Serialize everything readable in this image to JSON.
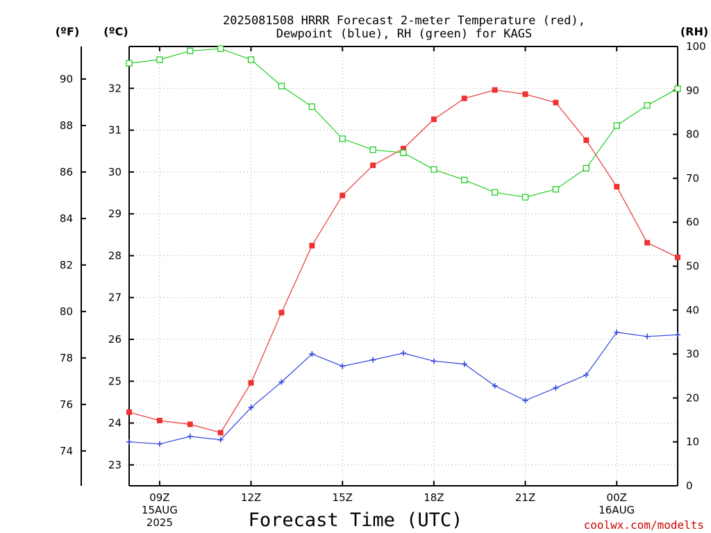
{
  "chart_data": {
    "type": "line",
    "title_line1": "2025081508 HRRR Forecast 2-meter Temperature (red),",
    "title_line2": "Dewpoint (blue), RH (green) for KAGS",
    "left_unit_f": "(ºF)",
    "left_unit_c": "(ºC)",
    "right_unit": "(RH)",
    "xlabel": "Forecast Time (UTC)",
    "credit": "coolwx.com/modelts",
    "x_hours": [
      8,
      9,
      10,
      11,
      12,
      13,
      14,
      15,
      16,
      17,
      18,
      19,
      20,
      21,
      22,
      23,
      24,
      25,
      26
    ],
    "x_ticks": [
      {
        "hour": 9,
        "lines": [
          "09Z",
          "15AUG",
          "2025"
        ]
      },
      {
        "hour": 12,
        "lines": [
          "12Z"
        ]
      },
      {
        "hour": 15,
        "lines": [
          "15Z"
        ]
      },
      {
        "hour": 18,
        "lines": [
          "18Z"
        ]
      },
      {
        "hour": 21,
        "lines": [
          "21Z"
        ]
      },
      {
        "hour": 24,
        "lines": [
          "00Z",
          "16AUG"
        ]
      }
    ],
    "xlim": [
      8,
      26
    ],
    "celsius_axis": {
      "ylim": [
        22.5,
        33.0
      ],
      "ticks": [
        23,
        24,
        25,
        26,
        27,
        28,
        29,
        30,
        31,
        32
      ]
    },
    "fahrenheit_axis": {
      "ticks": [
        74,
        76,
        78,
        80,
        82,
        84,
        86,
        88,
        90
      ]
    },
    "rh_axis": {
      "ylim": [
        0,
        100
      ],
      "ticks": [
        0,
        10,
        20,
        30,
        40,
        50,
        60,
        70,
        80,
        90,
        100
      ]
    },
    "grid": true,
    "series": [
      {
        "name": "Temperature",
        "axis": "celsius",
        "color": "#ee3333",
        "marker": "filled-square",
        "values": [
          24.26,
          24.06,
          23.97,
          23.77,
          24.96,
          26.64,
          28.24,
          29.44,
          30.16,
          30.56,
          31.26,
          31.76,
          31.96,
          31.86,
          31.66,
          30.76,
          29.65,
          28.31,
          27.96
        ]
      },
      {
        "name": "Dewpoint",
        "axis": "celsius",
        "color": "#3344dd",
        "marker": "plus",
        "values": [
          23.55,
          23.5,
          23.68,
          23.6,
          24.37,
          24.98,
          25.65,
          25.36,
          25.51,
          25.67,
          25.48,
          25.41,
          24.89,
          24.54,
          24.84,
          25.15,
          26.17,
          26.07,
          26.11
        ]
      },
      {
        "name": "RH",
        "axis": "rh",
        "color": "#22cc22",
        "marker": "open-square",
        "values": [
          96.2,
          97.0,
          99.0,
          99.5,
          97.0,
          91.0,
          86.3,
          79.0,
          76.5,
          75.8,
          72.0,
          69.6,
          66.8,
          65.7,
          67.5,
          72.3,
          82.0,
          86.6,
          90.4
        ]
      }
    ]
  }
}
